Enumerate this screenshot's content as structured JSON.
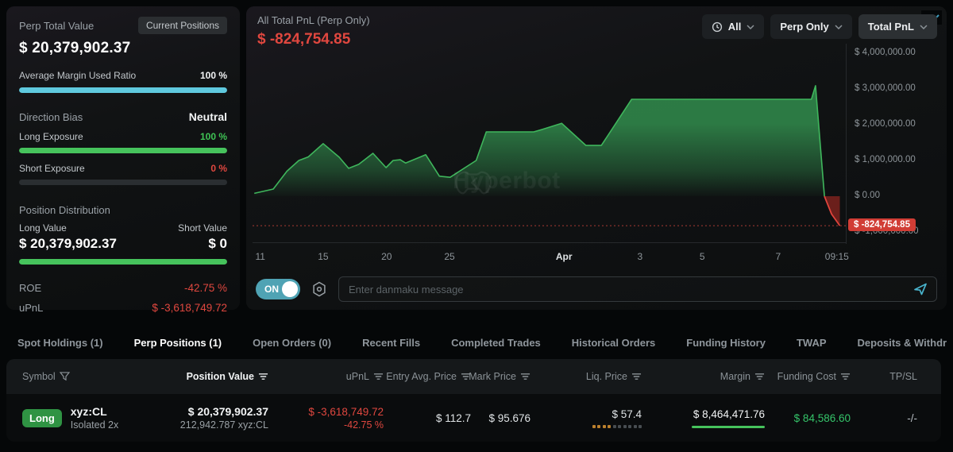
{
  "left_panel": {
    "title": "Perp Total Value",
    "current_positions_button": "Current Positions",
    "total_value": "$ 20,379,902.37",
    "avg_margin_used_ratio": {
      "label": "Average Margin Used Ratio",
      "value": "100 %",
      "percent": 100
    },
    "direction_bias": {
      "label": "Direction Bias",
      "value": "Neutral"
    },
    "long_exposure": {
      "label": "Long Exposure",
      "value": "100 %",
      "percent": 100
    },
    "short_exposure": {
      "label": "Short Exposure",
      "value": "0 %",
      "percent": 0
    },
    "position_distribution": {
      "title": "Position Distribution",
      "long_label": "Long Value",
      "long_value": "$ 20,379,902.37",
      "short_label": "Short Value",
      "short_value": "$ 0",
      "long_percent": 100
    },
    "roe": {
      "label": "ROE",
      "value": "-42.75 %"
    },
    "upnl": {
      "label": "uPnL",
      "value": "$ -3,618,749.72"
    }
  },
  "chart_panel": {
    "title": "All Total PnL (Perp Only)",
    "value": "$ -824,754.85",
    "filters": {
      "time_range": "All",
      "scope": "Perp Only",
      "metric": "Total PnL"
    },
    "watermark": "Hyperbot",
    "danmaku": {
      "toggle_label": "ON",
      "placeholder": "Enter danmaku message"
    }
  },
  "chart_data": {
    "type": "area",
    "title": "All Total PnL (Perp Only)",
    "grid": false,
    "legend": false,
    "ylim": [
      -1290000,
      4270000
    ],
    "baseline": 0,
    "current_value": -824754.85,
    "current_label": "$ -824,754.85",
    "y_ticks": [
      {
        "value": 4000000,
        "label": "$ 4,000,000.00"
      },
      {
        "value": 3000000,
        "label": "$ 3,000,000.00"
      },
      {
        "value": 2000000,
        "label": "$ 2,000,000.00"
      },
      {
        "value": 1000000,
        "label": "$ 1,000,000.00"
      },
      {
        "value": 0,
        "label": "$ 0.00"
      },
      {
        "value": -1000000,
        "label": "$ -1,000,000.00"
      }
    ],
    "x_ticks": [
      {
        "pos": 0.013,
        "label": "11"
      },
      {
        "pos": 0.119,
        "label": "15"
      },
      {
        "pos": 0.226,
        "label": "20"
      },
      {
        "pos": 0.332,
        "label": "25"
      },
      {
        "pos": 0.525,
        "label": "Apr",
        "emphasis": true
      },
      {
        "pos": 0.653,
        "label": "3"
      },
      {
        "pos": 0.758,
        "label": "5"
      },
      {
        "pos": 0.886,
        "label": "7"
      },
      {
        "pos": 0.985,
        "label": "09:15"
      }
    ],
    "series": [
      {
        "name": "Total PnL",
        "color_positive": "#3fb65c",
        "color_negative": "#e0443c",
        "points": [
          [
            0.003,
            80000
          ],
          [
            0.035,
            200000
          ],
          [
            0.058,
            700000
          ],
          [
            0.078,
            1000000
          ],
          [
            0.094,
            1100000
          ],
          [
            0.119,
            1470000
          ],
          [
            0.146,
            1090000
          ],
          [
            0.162,
            780000
          ],
          [
            0.179,
            890000
          ],
          [
            0.203,
            1200000
          ],
          [
            0.225,
            800000
          ],
          [
            0.237,
            1000000
          ],
          [
            0.249,
            1020000
          ],
          [
            0.258,
            930000
          ],
          [
            0.292,
            1160000
          ],
          [
            0.315,
            560000
          ],
          [
            0.333,
            530000
          ],
          [
            0.377,
            1000000
          ],
          [
            0.394,
            1800000
          ],
          [
            0.474,
            1800000
          ],
          [
            0.489,
            1870000
          ],
          [
            0.521,
            2040000
          ],
          [
            0.562,
            1420000
          ],
          [
            0.588,
            1420000
          ],
          [
            0.639,
            2710000
          ],
          [
            0.942,
            2710000
          ],
          [
            0.949,
            3090000
          ],
          [
            0.964,
            0
          ],
          [
            0.976,
            -500000
          ],
          [
            0.99,
            -824754.85
          ]
        ]
      }
    ],
    "reference_line": {
      "value": -824754.85,
      "style": "dotted",
      "color": "#a93b33"
    }
  },
  "tabs": [
    {
      "label": "Spot Holdings (1)",
      "active": false
    },
    {
      "label": "Perp Positions (1)",
      "active": true
    },
    {
      "label": "Open Orders (0)",
      "active": false
    },
    {
      "label": "Recent Fills",
      "active": false
    },
    {
      "label": "Completed Trades",
      "active": false
    },
    {
      "label": "Historical Orders",
      "active": false
    },
    {
      "label": "Funding History",
      "active": false
    },
    {
      "label": "TWAP",
      "active": false
    },
    {
      "label": "Deposits & Withdraw",
      "active": false
    }
  ],
  "positions_table": {
    "headers": [
      "Symbol",
      "Position Value",
      "uPnL",
      "Entry Avg. Price",
      "Mark Price",
      "Liq. Price",
      "Margin",
      "Funding Cost",
      "TP/SL"
    ],
    "row": {
      "side": "Long",
      "symbol": "xyz:CL",
      "margin_mode": "Isolated 2x",
      "position_value": "$ 20,379,902.37",
      "position_size": "212,942.787 xyz:CL",
      "upnl": "$ -3,618,749.72",
      "upnl_percent": "-42.75 %",
      "entry_avg_price": "$ 112.7",
      "mark_price": "$ 95.676",
      "liq_price": "$ 57.4",
      "liq_risk_dots": {
        "filled": 4,
        "total": 10
      },
      "margin": "$ 8,464,471.76",
      "funding_cost": "$ 84,586.60",
      "tp_sl": "-/-"
    }
  },
  "icons": {
    "time_range": "clock-icon",
    "dropdowns": "chevron-down-icon",
    "danmaku_settings": "gear-icon",
    "danmaku_send": "send-icon",
    "symbol_header": "filter-icon",
    "sortable_headers": "sort-icon",
    "tabs_overflow": "chevron-down-icon"
  },
  "colors": {
    "positive": "#3fc455",
    "negative": "#e0473f",
    "accent_teal": "#4fa3b4",
    "badge_red": "#d13d35",
    "ratio_cyan": "#5fc9de"
  }
}
